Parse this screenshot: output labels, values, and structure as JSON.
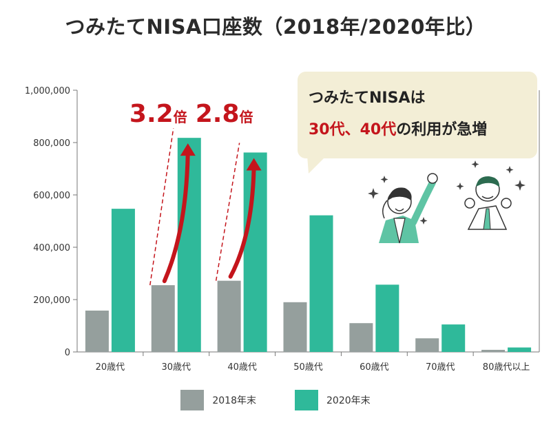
{
  "title": "つみたてNISA口座数（2018年/2020年比）",
  "callout": {
    "line1": "つみたてNISAは",
    "line2_a": "30代、40代",
    "line2_b": "の利用が急増"
  },
  "colors": {
    "series_2018": "#959f9d",
    "series_2020": "#2fb99a",
    "accent": "#c4151c",
    "callout_bg": "#f3eed6"
  },
  "annotations": [
    {
      "category": "30歳代",
      "num": "3.2",
      "suffix": "倍"
    },
    {
      "category": "40歳代",
      "num": "2.8",
      "suffix": "倍"
    }
  ],
  "illustration_icons": [
    "woman-cheering-icon",
    "man-celebrating-icon",
    "sparkle-icon"
  ],
  "chart_data": {
    "type": "bar",
    "title": "つみたてNISA口座数（2018年/2020年比）",
    "categories": [
      "20歳代",
      "30歳代",
      "40歳代",
      "50歳代",
      "60歳代",
      "70歳代",
      "80歳代以上"
    ],
    "series": [
      {
        "name": "2018年末",
        "values": [
          158000,
          255000,
          272000,
          190000,
          110000,
          52000,
          8000
        ]
      },
      {
        "name": "2020年末",
        "values": [
          547000,
          818000,
          762000,
          522000,
          257000,
          105000,
          17000
        ]
      }
    ],
    "yticks": [
      "0",
      "200,000",
      "400,000",
      "600,000",
      "800,000",
      "1,000,000"
    ],
    "ylim": [
      0,
      1000000
    ],
    "legend": "bottom-center",
    "grid": false
  }
}
